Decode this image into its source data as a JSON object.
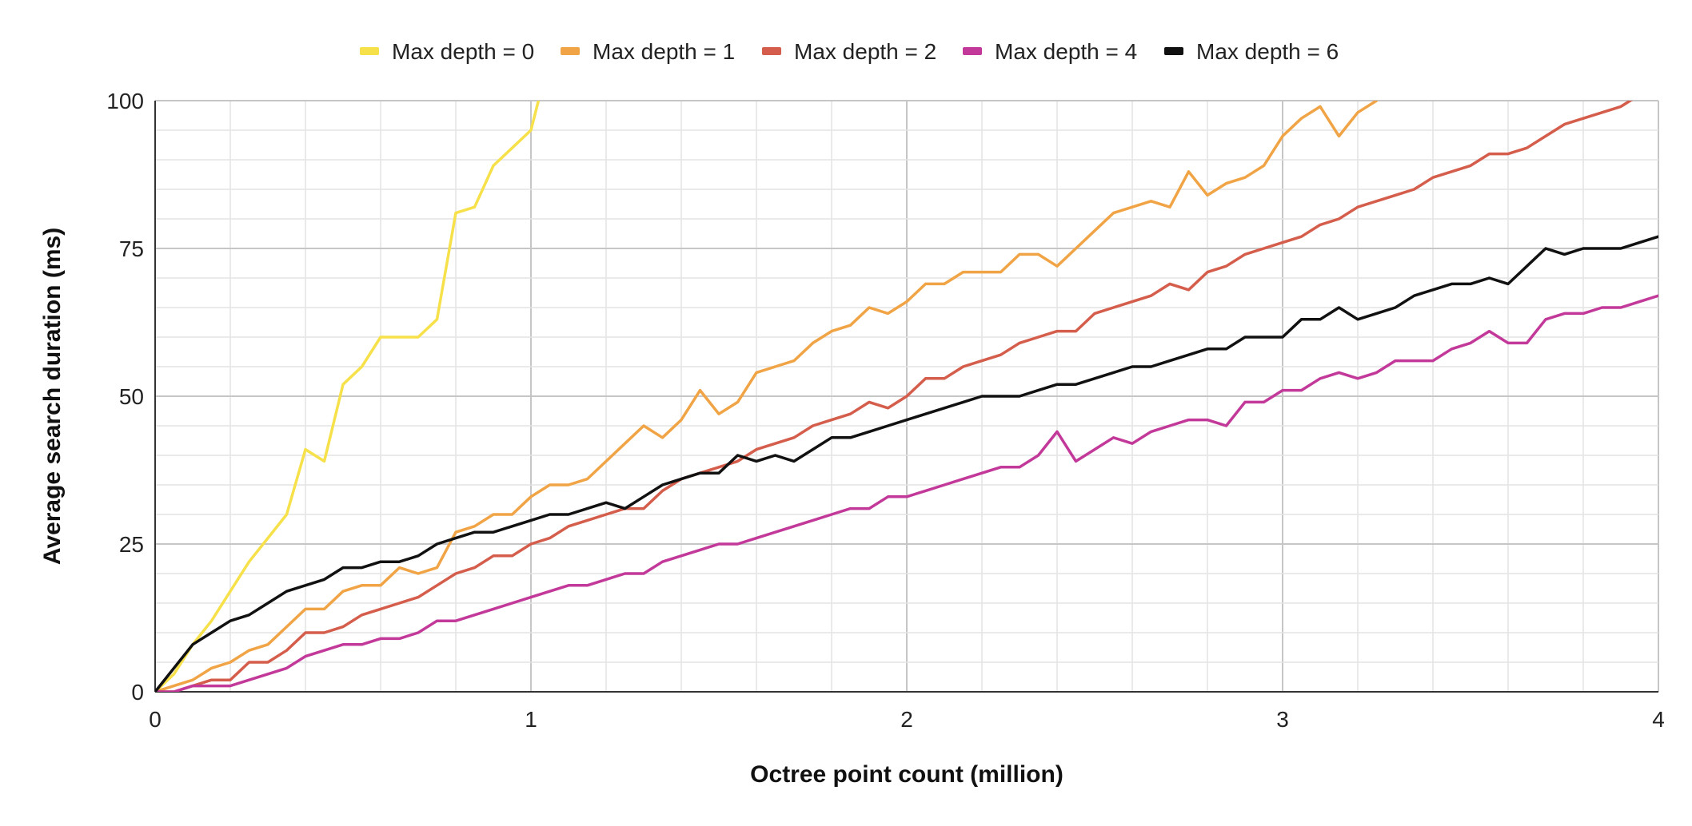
{
  "chart_data": {
    "type": "line",
    "title": "",
    "xlabel": "Octree point count (million)",
    "ylabel": "Average search duration (ms)",
    "xlim": [
      0,
      4
    ],
    "ylim": [
      0,
      100
    ],
    "x_ticks": [
      "0",
      "1",
      "2",
      "3",
      "4"
    ],
    "y_ticks": [
      "0",
      "25",
      "50",
      "75",
      "100"
    ],
    "grid": true,
    "legend_position": "top",
    "series": [
      {
        "name": "Max depth = 0",
        "color": "#f7e14a",
        "points": [
          [
            0,
            0
          ],
          [
            0.05,
            3
          ],
          [
            0.1,
            8
          ],
          [
            0.15,
            12
          ],
          [
            0.2,
            17
          ],
          [
            0.25,
            22
          ],
          [
            0.3,
            26
          ],
          [
            0.35,
            30
          ],
          [
            0.4,
            41
          ],
          [
            0.45,
            39
          ],
          [
            0.5,
            52
          ],
          [
            0.55,
            55
          ],
          [
            0.6,
            60
          ],
          [
            0.65,
            60
          ],
          [
            0.7,
            60
          ],
          [
            0.75,
            63
          ],
          [
            0.8,
            81
          ],
          [
            0.85,
            82
          ],
          [
            0.9,
            89
          ],
          [
            0.95,
            92
          ],
          [
            1.0,
            95
          ],
          [
            1.02,
            100
          ]
        ]
      },
      {
        "name": "Max depth = 1",
        "color": "#f0a445",
        "points": [
          [
            0,
            0
          ],
          [
            0.05,
            1
          ],
          [
            0.1,
            2
          ],
          [
            0.15,
            4
          ],
          [
            0.2,
            5
          ],
          [
            0.25,
            7
          ],
          [
            0.3,
            8
          ],
          [
            0.35,
            11
          ],
          [
            0.4,
            14
          ],
          [
            0.45,
            14
          ],
          [
            0.5,
            17
          ],
          [
            0.55,
            18
          ],
          [
            0.6,
            18
          ],
          [
            0.65,
            21
          ],
          [
            0.7,
            20
          ],
          [
            0.75,
            21
          ],
          [
            0.8,
            27
          ],
          [
            0.85,
            28
          ],
          [
            0.9,
            30
          ],
          [
            0.95,
            30
          ],
          [
            1.0,
            33
          ],
          [
            1.05,
            35
          ],
          [
            1.1,
            35
          ],
          [
            1.15,
            36
          ],
          [
            1.2,
            39
          ],
          [
            1.25,
            42
          ],
          [
            1.3,
            45
          ],
          [
            1.35,
            43
          ],
          [
            1.4,
            46
          ],
          [
            1.45,
            51
          ],
          [
            1.5,
            47
          ],
          [
            1.55,
            49
          ],
          [
            1.6,
            54
          ],
          [
            1.65,
            55
          ],
          [
            1.7,
            56
          ],
          [
            1.75,
            59
          ],
          [
            1.8,
            61
          ],
          [
            1.85,
            62
          ],
          [
            1.9,
            65
          ],
          [
            1.95,
            64
          ],
          [
            2.0,
            66
          ],
          [
            2.05,
            69
          ],
          [
            2.1,
            69
          ],
          [
            2.15,
            71
          ],
          [
            2.2,
            71
          ],
          [
            2.25,
            71
          ],
          [
            2.3,
            74
          ],
          [
            2.35,
            74
          ],
          [
            2.4,
            72
          ],
          [
            2.45,
            75
          ],
          [
            2.5,
            78
          ],
          [
            2.55,
            81
          ],
          [
            2.6,
            82
          ],
          [
            2.65,
            83
          ],
          [
            2.7,
            82
          ],
          [
            2.75,
            88
          ],
          [
            2.8,
            84
          ],
          [
            2.85,
            86
          ],
          [
            2.9,
            87
          ],
          [
            2.95,
            89
          ],
          [
            3.0,
            94
          ],
          [
            3.05,
            97
          ],
          [
            3.1,
            99
          ],
          [
            3.15,
            94
          ],
          [
            3.2,
            98
          ],
          [
            3.25,
            100
          ]
        ]
      },
      {
        "name": "Max depth = 2",
        "color": "#d45d4b",
        "points": [
          [
            0,
            0
          ],
          [
            0.05,
            0
          ],
          [
            0.1,
            1
          ],
          [
            0.15,
            2
          ],
          [
            0.2,
            2
          ],
          [
            0.25,
            5
          ],
          [
            0.3,
            5
          ],
          [
            0.35,
            7
          ],
          [
            0.4,
            10
          ],
          [
            0.45,
            10
          ],
          [
            0.5,
            11
          ],
          [
            0.55,
            13
          ],
          [
            0.6,
            14
          ],
          [
            0.65,
            15
          ],
          [
            0.7,
            16
          ],
          [
            0.75,
            18
          ],
          [
            0.8,
            20
          ],
          [
            0.85,
            21
          ],
          [
            0.9,
            23
          ],
          [
            0.95,
            23
          ],
          [
            1.0,
            25
          ],
          [
            1.05,
            26
          ],
          [
            1.1,
            28
          ],
          [
            1.15,
            29
          ],
          [
            1.2,
            30
          ],
          [
            1.25,
            31
          ],
          [
            1.3,
            31
          ],
          [
            1.35,
            34
          ],
          [
            1.4,
            36
          ],
          [
            1.45,
            37
          ],
          [
            1.5,
            38
          ],
          [
            1.55,
            39
          ],
          [
            1.6,
            41
          ],
          [
            1.65,
            42
          ],
          [
            1.7,
            43
          ],
          [
            1.75,
            45
          ],
          [
            1.8,
            46
          ],
          [
            1.85,
            47
          ],
          [
            1.9,
            49
          ],
          [
            1.95,
            48
          ],
          [
            2.0,
            50
          ],
          [
            2.05,
            53
          ],
          [
            2.1,
            53
          ],
          [
            2.15,
            55
          ],
          [
            2.2,
            56
          ],
          [
            2.25,
            57
          ],
          [
            2.3,
            59
          ],
          [
            2.35,
            60
          ],
          [
            2.4,
            61
          ],
          [
            2.45,
            61
          ],
          [
            2.5,
            64
          ],
          [
            2.55,
            65
          ],
          [
            2.6,
            66
          ],
          [
            2.65,
            67
          ],
          [
            2.7,
            69
          ],
          [
            2.75,
            68
          ],
          [
            2.8,
            71
          ],
          [
            2.85,
            72
          ],
          [
            2.9,
            74
          ],
          [
            2.95,
            75
          ],
          [
            3.0,
            76
          ],
          [
            3.05,
            77
          ],
          [
            3.1,
            79
          ],
          [
            3.15,
            80
          ],
          [
            3.2,
            82
          ],
          [
            3.25,
            83
          ],
          [
            3.3,
            84
          ],
          [
            3.35,
            85
          ],
          [
            3.4,
            87
          ],
          [
            3.45,
            88
          ],
          [
            3.5,
            89
          ],
          [
            3.55,
            91
          ],
          [
            3.6,
            91
          ],
          [
            3.65,
            92
          ],
          [
            3.7,
            94
          ],
          [
            3.75,
            96
          ],
          [
            3.8,
            97
          ],
          [
            3.85,
            98
          ],
          [
            3.9,
            99
          ],
          [
            3.95,
            101
          ]
        ]
      },
      {
        "name": "Max depth = 4",
        "color": "#c2399a",
        "points": [
          [
            0,
            0
          ],
          [
            0.05,
            0
          ],
          [
            0.1,
            1
          ],
          [
            0.15,
            1
          ],
          [
            0.2,
            1
          ],
          [
            0.25,
            2
          ],
          [
            0.3,
            3
          ],
          [
            0.35,
            4
          ],
          [
            0.4,
            6
          ],
          [
            0.45,
            7
          ],
          [
            0.5,
            8
          ],
          [
            0.55,
            8
          ],
          [
            0.6,
            9
          ],
          [
            0.65,
            9
          ],
          [
            0.7,
            10
          ],
          [
            0.75,
            12
          ],
          [
            0.8,
            12
          ],
          [
            0.85,
            13
          ],
          [
            0.9,
            14
          ],
          [
            0.95,
            15
          ],
          [
            1.0,
            16
          ],
          [
            1.05,
            17
          ],
          [
            1.1,
            18
          ],
          [
            1.15,
            18
          ],
          [
            1.2,
            19
          ],
          [
            1.25,
            20
          ],
          [
            1.3,
            20
          ],
          [
            1.35,
            22
          ],
          [
            1.4,
            23
          ],
          [
            1.45,
            24
          ],
          [
            1.5,
            25
          ],
          [
            1.55,
            25
          ],
          [
            1.6,
            26
          ],
          [
            1.65,
            27
          ],
          [
            1.7,
            28
          ],
          [
            1.75,
            29
          ],
          [
            1.8,
            30
          ],
          [
            1.85,
            31
          ],
          [
            1.9,
            31
          ],
          [
            1.95,
            33
          ],
          [
            2.0,
            33
          ],
          [
            2.05,
            34
          ],
          [
            2.1,
            35
          ],
          [
            2.15,
            36
          ],
          [
            2.2,
            37
          ],
          [
            2.25,
            38
          ],
          [
            2.3,
            38
          ],
          [
            2.35,
            40
          ],
          [
            2.4,
            44
          ],
          [
            2.45,
            39
          ],
          [
            2.5,
            41
          ],
          [
            2.55,
            43
          ],
          [
            2.6,
            42
          ],
          [
            2.65,
            44
          ],
          [
            2.7,
            45
          ],
          [
            2.75,
            46
          ],
          [
            2.8,
            46
          ],
          [
            2.85,
            45
          ],
          [
            2.9,
            49
          ],
          [
            2.95,
            49
          ],
          [
            3.0,
            51
          ],
          [
            3.05,
            51
          ],
          [
            3.1,
            53
          ],
          [
            3.15,
            54
          ],
          [
            3.2,
            53
          ],
          [
            3.25,
            54
          ],
          [
            3.3,
            56
          ],
          [
            3.35,
            56
          ],
          [
            3.4,
            56
          ],
          [
            3.45,
            58
          ],
          [
            3.5,
            59
          ],
          [
            3.55,
            61
          ],
          [
            3.6,
            59
          ],
          [
            3.65,
            59
          ],
          [
            3.7,
            63
          ],
          [
            3.75,
            64
          ],
          [
            3.8,
            64
          ],
          [
            3.85,
            65
          ],
          [
            3.9,
            65
          ],
          [
            3.95,
            66
          ],
          [
            4.0,
            67
          ]
        ]
      },
      {
        "name": "Max depth = 6",
        "color": "#111111",
        "points": [
          [
            0,
            0
          ],
          [
            0.05,
            4
          ],
          [
            0.1,
            8
          ],
          [
            0.15,
            10
          ],
          [
            0.2,
            12
          ],
          [
            0.25,
            13
          ],
          [
            0.3,
            15
          ],
          [
            0.35,
            17
          ],
          [
            0.4,
            18
          ],
          [
            0.45,
            19
          ],
          [
            0.5,
            21
          ],
          [
            0.55,
            21
          ],
          [
            0.6,
            22
          ],
          [
            0.65,
            22
          ],
          [
            0.7,
            23
          ],
          [
            0.75,
            25
          ],
          [
            0.8,
            26
          ],
          [
            0.85,
            27
          ],
          [
            0.9,
            27
          ],
          [
            0.95,
            28
          ],
          [
            1.0,
            29
          ],
          [
            1.05,
            30
          ],
          [
            1.1,
            30
          ],
          [
            1.15,
            31
          ],
          [
            1.2,
            32
          ],
          [
            1.25,
            31
          ],
          [
            1.3,
            33
          ],
          [
            1.35,
            35
          ],
          [
            1.4,
            36
          ],
          [
            1.45,
            37
          ],
          [
            1.5,
            37
          ],
          [
            1.55,
            40
          ],
          [
            1.6,
            39
          ],
          [
            1.65,
            40
          ],
          [
            1.7,
            39
          ],
          [
            1.75,
            41
          ],
          [
            1.8,
            43
          ],
          [
            1.85,
            43
          ],
          [
            1.9,
            44
          ],
          [
            1.95,
            45
          ],
          [
            2.0,
            46
          ],
          [
            2.05,
            47
          ],
          [
            2.1,
            48
          ],
          [
            2.15,
            49
          ],
          [
            2.2,
            50
          ],
          [
            2.25,
            50
          ],
          [
            2.3,
            50
          ],
          [
            2.35,
            51
          ],
          [
            2.4,
            52
          ],
          [
            2.45,
            52
          ],
          [
            2.5,
            53
          ],
          [
            2.55,
            54
          ],
          [
            2.6,
            55
          ],
          [
            2.65,
            55
          ],
          [
            2.7,
            56
          ],
          [
            2.75,
            57
          ],
          [
            2.8,
            58
          ],
          [
            2.85,
            58
          ],
          [
            2.9,
            60
          ],
          [
            2.95,
            60
          ],
          [
            3.0,
            60
          ],
          [
            3.05,
            63
          ],
          [
            3.1,
            63
          ],
          [
            3.15,
            65
          ],
          [
            3.2,
            63
          ],
          [
            3.25,
            64
          ],
          [
            3.3,
            65
          ],
          [
            3.35,
            67
          ],
          [
            3.4,
            68
          ],
          [
            3.45,
            69
          ],
          [
            3.5,
            69
          ],
          [
            3.55,
            70
          ],
          [
            3.6,
            69
          ],
          [
            3.65,
            72
          ],
          [
            3.7,
            75
          ],
          [
            3.75,
            74
          ],
          [
            3.8,
            75
          ],
          [
            3.85,
            75
          ],
          [
            3.9,
            75
          ],
          [
            3.95,
            76
          ],
          [
            4.0,
            77
          ]
        ]
      }
    ]
  }
}
